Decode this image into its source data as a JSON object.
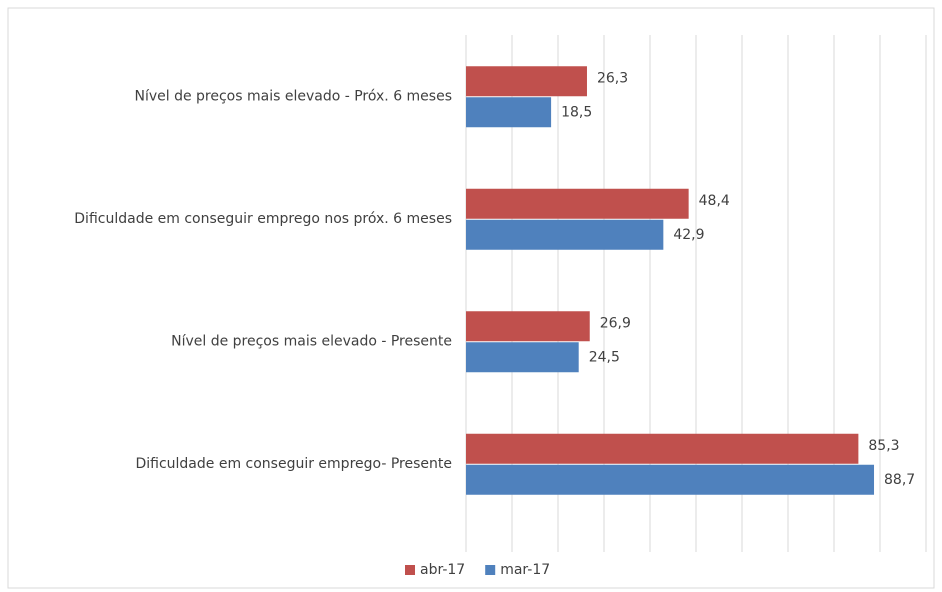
{
  "chart_data": {
    "type": "hbar",
    "categories": [
      "Nível de preços mais elevado - Próx. 6 meses",
      "Dificuldade em conseguir emprego nos próx. 6 meses",
      "Nível de preços mais elevado - Presente",
      "Dificuldade em conseguir emprego- Presente"
    ],
    "series": [
      {
        "name": "abr-17",
        "color": "#c0504d",
        "values": [
          26.3,
          48.4,
          26.9,
          85.3
        ],
        "value_labels": [
          "26,3",
          "48,4",
          "26,9",
          "85,3"
        ]
      },
      {
        "name": "mar-17",
        "color": "#4f81bd",
        "values": [
          18.5,
          42.9,
          24.5,
          88.7
        ],
        "value_labels": [
          "18,5",
          "42,9",
          "24,5",
          "88,7"
        ]
      }
    ],
    "xlim": [
      0,
      100
    ],
    "xticks": [
      0,
      10,
      20,
      30,
      40,
      50,
      60,
      70,
      80,
      90,
      100
    ],
    "grid": true,
    "legend": "bottom"
  }
}
